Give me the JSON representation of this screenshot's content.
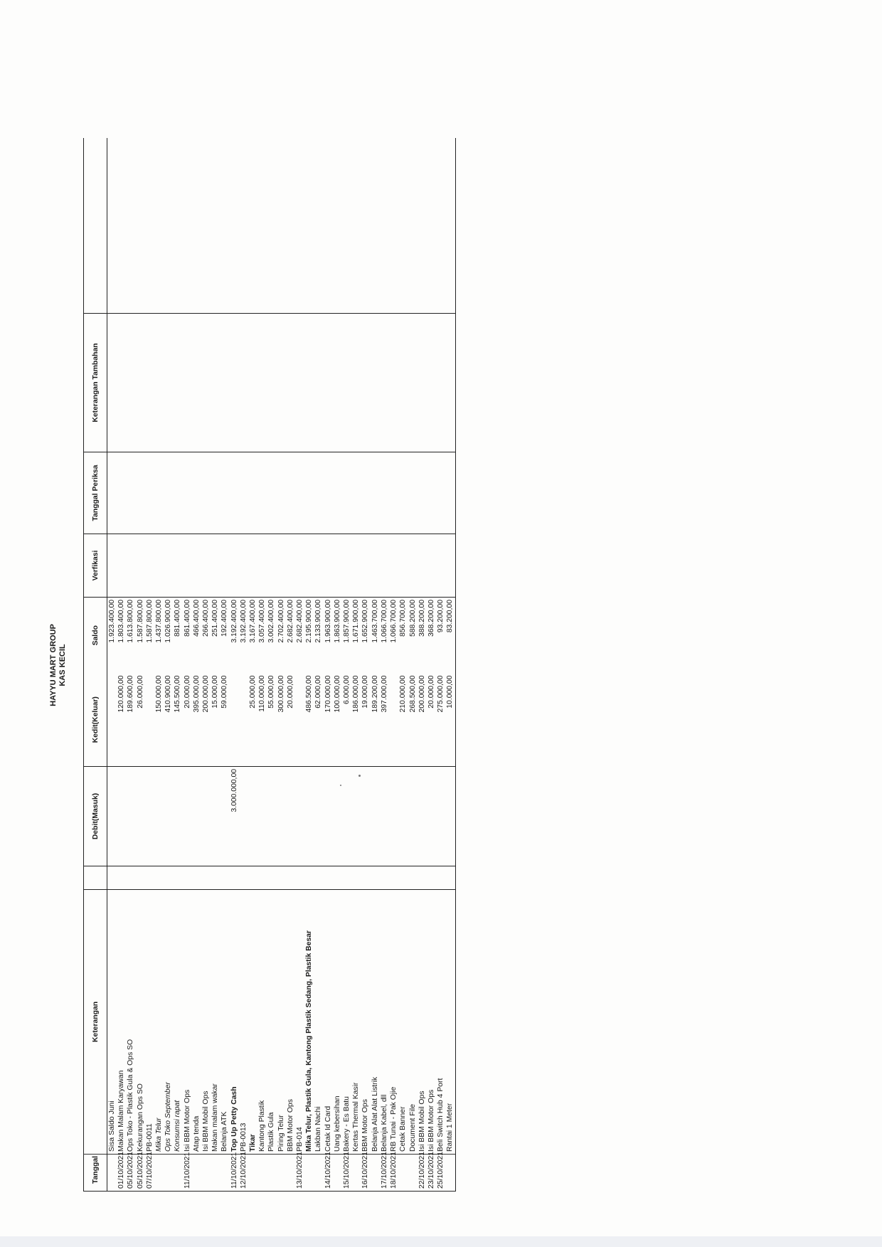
{
  "header": {
    "company": "HAYYU MART GROUP",
    "subtitle": "KAS KECIL"
  },
  "columns": {
    "tanggal": "Tanggal",
    "keterangan": "Keterangan",
    "debit": "Debit(Masuk)",
    "kredit": "Kedit(Keluar)",
    "saldo": "Saldo",
    "verifikasi": "Verfikasi",
    "tanggal_periksa": "Tanggal Periksa",
    "keterangan_tambahan": "Keterangan Tambahan"
  },
  "rows": [
    {
      "date": "",
      "desc": "Sisa Saldo Juni",
      "debit": "",
      "credit": "",
      "saldo": "1.923.400,00",
      "style": ""
    },
    {
      "date": "01/10/2021",
      "desc": "Makan Malam Karyawan",
      "debit": "",
      "credit": "120.000,00",
      "saldo": "1.803.400,00",
      "style": ""
    },
    {
      "date": "05/10/2021",
      "desc": "Ops Toko - Plastik Gula & Ops SO",
      "debit": "",
      "credit": "189.600,00",
      "saldo": "1.613.800,00",
      "style": ""
    },
    {
      "date": "05/10/2021",
      "desc": "Kekurangan Ops SO",
      "debit": "",
      "credit": "26.000,00",
      "saldo": "1.587.800,00",
      "style": ""
    },
    {
      "date": "07/10/2021",
      "desc": "PB-0011",
      "debit": "",
      "credit": "",
      "saldo": "1.587.800,00",
      "style": ""
    },
    {
      "date": "",
      "desc": "Mika Telur",
      "debit": "",
      "credit": "150.000,00",
      "saldo": "1.437.800,00",
      "style": "italic"
    },
    {
      "date": "",
      "desc": "Ops Toko September",
      "debit": "",
      "credit": "410.900,00",
      "saldo": "1.026.900,00",
      "style": "italic"
    },
    {
      "date": "",
      "desc": "Konsumsi rapat",
      "debit": "",
      "credit": "145.500,00",
      "saldo": "881.400,00",
      "style": "italic"
    },
    {
      "date": "11/10/2021",
      "desc": "Isi BBM Motor Ops",
      "debit": "",
      "credit": "20.000,00",
      "saldo": "861.400,00",
      "style": ""
    },
    {
      "date": "",
      "desc": "Atap tenda",
      "debit": "",
      "credit": "395.000,00",
      "saldo": "466.400,00",
      "style": ""
    },
    {
      "date": "",
      "desc": "Isi BBM Mobil Ops",
      "debit": "",
      "credit": "200.000,00",
      "saldo": "266.400,00",
      "style": ""
    },
    {
      "date": "",
      "desc": "Makan malam wakar",
      "debit": "",
      "credit": "15.000,00",
      "saldo": "251.400,00",
      "style": ""
    },
    {
      "date": "",
      "desc": "Belanja ATK",
      "debit": "",
      "credit": "59.000,00",
      "saldo": "192.400,00",
      "style": ""
    },
    {
      "date": "11/10/2021",
      "desc": "Top Up Petty Cash",
      "debit": "3.000.000,00",
      "credit": "",
      "saldo": "3.192.400,00",
      "style": "bold"
    },
    {
      "date": "12/10/2021",
      "desc": "PB-0013",
      "debit": "",
      "credit": "",
      "saldo": "3.192.400,00",
      "style": ""
    },
    {
      "date": "",
      "desc": "Tikar",
      "debit": "",
      "credit": "25.000,00",
      "saldo": "3.167.400,00",
      "style": "bold"
    },
    {
      "date": "",
      "desc": "Kantong Plastik",
      "debit": "",
      "credit": "110.000,00",
      "saldo": "3.057.400,00",
      "style": ""
    },
    {
      "date": "",
      "desc": "Plastik Gula",
      "debit": "",
      "credit": "55.000,00",
      "saldo": "3.002.400,00",
      "style": ""
    },
    {
      "date": "",
      "desc": "Piring Telur",
      "debit": "",
      "credit": "300.000,00",
      "saldo": "2.702.400,00",
      "style": ""
    },
    {
      "date": "",
      "desc": "BBM Motor Ops",
      "debit": "",
      "credit": "20.000,00",
      "saldo": "2.682.400,00",
      "style": ""
    },
    {
      "date": "13/10/2021",
      "desc": "PB-014",
      "debit": "",
      "credit": "",
      "saldo": "2.682.400,00",
      "style": ""
    },
    {
      "date": "",
      "desc": "Mika Telur, Plastik Gula, Kantong Plastik Sedang, Plastik Besar",
      "debit": "",
      "credit": "486.500,00",
      "saldo": "2.195.900,00",
      "style": "bold"
    },
    {
      "date": "",
      "desc": "Lakban Nachi",
      "debit": "",
      "credit": "62.000,00",
      "saldo": "2.133.900,00",
      "style": ""
    },
    {
      "date": "14/10/2021",
      "desc": "Cetak Id Card",
      "debit": "",
      "credit": "170.000,00",
      "saldo": "1.963.900,00",
      "style": ""
    },
    {
      "date": "",
      "desc": "Uang kebersihan",
      "debit": "",
      "credit": "100.000,00",
      "saldo": "1.863.900,00",
      "style": ""
    },
    {
      "date": "15/10/2021",
      "desc": "Bakery - Es Batu",
      "debit": "",
      "credit": "6.000,00",
      "saldo": "1.857.900,00",
      "style": ""
    },
    {
      "date": "",
      "desc": "Kertas Thermal Kasir",
      "debit": "",
      "credit": "186.000,00",
      "saldo": "1.671.900,00",
      "style": ""
    },
    {
      "date": "16/10/2021",
      "desc": "BBM Motor Ops",
      "debit": "",
      "credit": "19.000,00",
      "saldo": "1.652.900,00",
      "style": ""
    },
    {
      "date": "",
      "desc": "Belanja Alat Alat Listrik",
      "debit": "",
      "credit": "189.200,00",
      "saldo": "1.463.700,00",
      "style": ""
    },
    {
      "date": "17/10/2021",
      "desc": "Belanja Kabel, dll",
      "debit": "",
      "credit": "397.000,00",
      "saldo": "1.066.700,00",
      "style": ""
    },
    {
      "date": "18/10/2021",
      "desc": "RB Tunai - Pak Ojie",
      "debit": "",
      "credit": "",
      "saldo": "1.066.700,00",
      "style": ""
    },
    {
      "date": "",
      "desc": "Cetak Banner",
      "debit": "",
      "credit": "210.000,00",
      "saldo": "856.700,00",
      "style": ""
    },
    {
      "date": "",
      "desc": "Document File",
      "debit": "",
      "credit": "268.500,00",
      "saldo": "588.200,00",
      "style": ""
    },
    {
      "date": "22/10/2021",
      "desc": "Isi BBM Mobil Ops",
      "debit": "",
      "credit": "200.000,00",
      "saldo": "388.200,00",
      "style": ""
    },
    {
      "date": "23/10/2021",
      "desc": "Isi BBM Motor Ops",
      "debit": "",
      "credit": "20.000,00",
      "saldo": "368.200,00",
      "style": ""
    },
    {
      "date": "25/10/2021",
      "desc": "Beli Switch Hub 4 Port",
      "debit": "",
      "credit": "275.000,00",
      "saldo": "93.200,00",
      "style": ""
    },
    {
      "date": "",
      "desc": "Rantai 1 Meter",
      "debit": "",
      "credit": "10.000,00",
      "saldo": "83.200,00",
      "style": ""
    }
  ]
}
